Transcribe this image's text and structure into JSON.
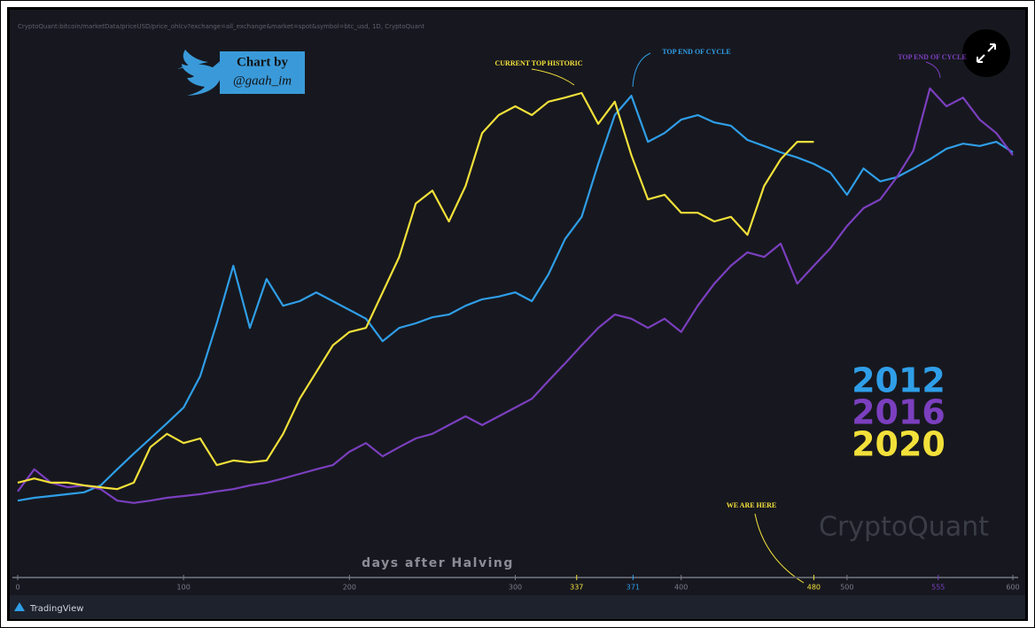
{
  "chart_data": {
    "type": "line",
    "source": "CryptoQuant:bitcoin/marketData/priceUSD/price_ohlcv?exchange=all_exchange&market=spot&symbol=btc_usd, 1D, CryptoQuant",
    "badge": [
      "Chart by",
      "@gaah_im"
    ],
    "xlabel": "days after Halving",
    "watermark": "CryptoQuant",
    "footer": "TradingView",
    "annotations": [
      {
        "text": "CURRENT TOP HISTORIC",
        "color": "#f2e03a"
      },
      {
        "text": "TOP END OF CYCLE",
        "color": "#2f9ee8"
      },
      {
        "text": "TOP END OF CYCLE",
        "color": "#7b3fbf"
      },
      {
        "text": "WE ARE HERE",
        "color": "#f2e03a"
      }
    ],
    "xlim": [
      0,
      600
    ],
    "ylim": [
      0,
      100
    ],
    "xticks": [
      0,
      100,
      200,
      300,
      337,
      371,
      400,
      480,
      500,
      555,
      600
    ],
    "xtick_colors": [
      "#787b86",
      "#787b86",
      "#787b86",
      "#787b86",
      "#f2e03a",
      "#2f9ee8",
      "#787b86",
      "#f2e03a",
      "#787b86",
      "#7b3fbf",
      "#787b86"
    ],
    "x": [
      0,
      10,
      20,
      30,
      40,
      50,
      60,
      70,
      80,
      90,
      100,
      110,
      120,
      130,
      140,
      150,
      160,
      170,
      180,
      190,
      200,
      210,
      220,
      230,
      240,
      250,
      260,
      270,
      280,
      290,
      300,
      310,
      320,
      330,
      340,
      350,
      360,
      370,
      380,
      390,
      400,
      410,
      420,
      430,
      440,
      450,
      460,
      470,
      480,
      490,
      500,
      510,
      520,
      530,
      540,
      550,
      560,
      570,
      580,
      590,
      600
    ],
    "series": [
      {
        "name": "2012",
        "color": "#2f9ee8",
        "values": [
          6.7,
          7.3,
          7.7,
          8.1,
          8.5,
          10,
          13.5,
          16.9,
          20.2,
          23.5,
          26.9,
          33.7,
          45.2,
          57.7,
          44.2,
          54.8,
          49,
          50,
          51.9,
          50,
          48.1,
          46.2,
          41.3,
          44.2,
          45.2,
          46.5,
          47.1,
          49,
          50.4,
          51,
          51.9,
          50,
          55.8,
          63.5,
          68.3,
          79.8,
          90.4,
          94.6,
          84.6,
          86.5,
          89.4,
          90.4,
          88.8,
          88.1,
          85,
          83.7,
          82.3,
          81.2,
          79.8,
          77.9,
          73.1,
          78.8,
          76,
          76.9,
          78.8,
          80.8,
          83.1,
          84.2,
          83.7,
          84.6,
          82.3
        ]
      },
      {
        "name": "2016",
        "color": "#7b3fbf",
        "values": [
          8.7,
          13.5,
          10.6,
          9.6,
          10,
          9.2,
          6.7,
          6.2,
          6.7,
          7.3,
          7.7,
          8.1,
          8.7,
          9.2,
          10,
          10.6,
          11.5,
          12.5,
          13.5,
          14.4,
          17.3,
          19.2,
          16.3,
          18.3,
          20.2,
          21.2,
          23.1,
          25,
          23.1,
          25,
          26.9,
          28.8,
          32.7,
          36.5,
          40.4,
          44.2,
          47.1,
          46.2,
          44.2,
          46.2,
          43.3,
          49,
          53.8,
          57.7,
          60.6,
          59.6,
          62.5,
          53.8,
          57.7,
          61.5,
          66.3,
          70.2,
          72.1,
          76.9,
          82.7,
          96.2,
          92.3,
          94.2,
          89.4,
          86.5,
          81.7
        ]
      },
      {
        "name": "2020",
        "color": "#f2e03a",
        "values": [
          10.6,
          11.5,
          10.6,
          10.6,
          10,
          9.6,
          9.2,
          10.6,
          18.3,
          21.2,
          19.2,
          20.2,
          14.4,
          15.4,
          15,
          15.4,
          21.2,
          28.8,
          34.6,
          40.4,
          43.3,
          44.2,
          51.9,
          59.6,
          71.2,
          74,
          67.3,
          75,
          86.5,
          90.4,
          92.3,
          90.4,
          93.3,
          94.2,
          95.2,
          88.5,
          93.3,
          81.7,
          72.1,
          73.1,
          69.2,
          69.2,
          67.3,
          68.3,
          64.4,
          75,
          80.8,
          84.6,
          84.6,
          null,
          null,
          null,
          null,
          null,
          null,
          null,
          null,
          null,
          null,
          null,
          null
        ]
      }
    ]
  }
}
